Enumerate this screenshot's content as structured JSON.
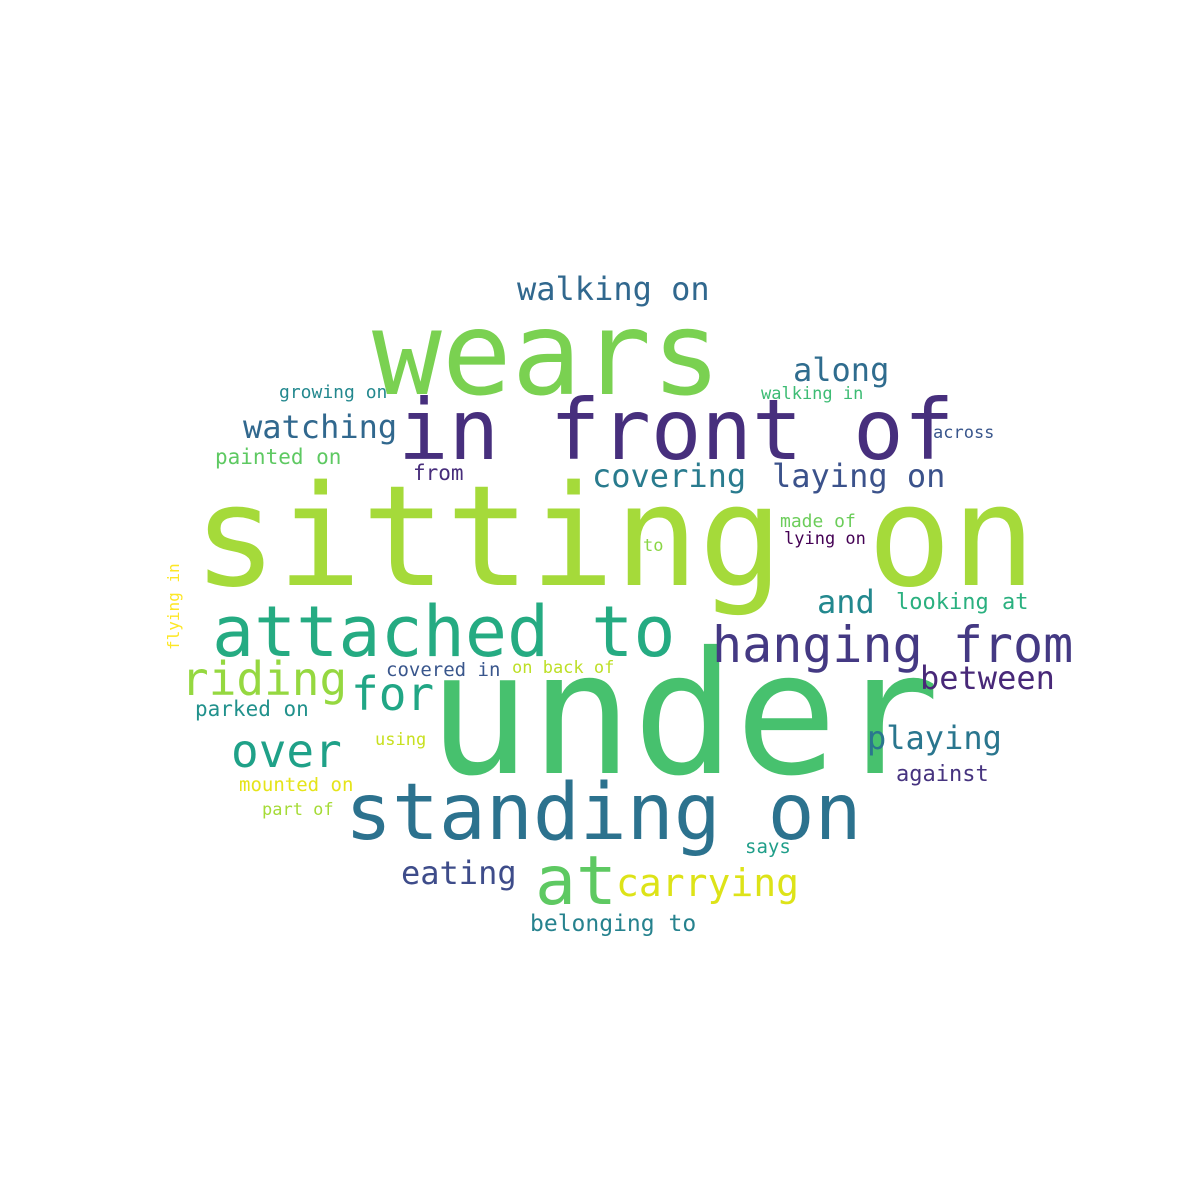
{
  "words": [
    {
      "text": "sitting on",
      "color": "#a5da3a"
    },
    {
      "text": "under",
      "color": "#47c16e"
    },
    {
      "text": "wears",
      "color": "#7ad151"
    },
    {
      "text": "in front of",
      "color": "#472f7d"
    },
    {
      "text": "attached to",
      "color": "#25ab82"
    },
    {
      "text": "standing on",
      "color": "#2c728e"
    },
    {
      "text": "hanging from",
      "color": "#443983"
    },
    {
      "text": "at",
      "color": "#5ec962"
    },
    {
      "text": "riding",
      "color": "#95d840"
    },
    {
      "text": "for",
      "color": "#21a685"
    },
    {
      "text": "over",
      "color": "#1fa188"
    },
    {
      "text": "carrying",
      "color": "#dde318"
    },
    {
      "text": "walking on",
      "color": "#31688e"
    },
    {
      "text": "along",
      "color": "#2f6c8e"
    },
    {
      "text": "watching",
      "color": "#31688e"
    },
    {
      "text": "covering",
      "color": "#297b8e"
    },
    {
      "text": "laying on",
      "color": "#3b528b"
    },
    {
      "text": "and",
      "color": "#23888e"
    },
    {
      "text": "between",
      "color": "#482878"
    },
    {
      "text": "playing",
      "color": "#2a768e"
    },
    {
      "text": "eating",
      "color": "#3e4c8a"
    },
    {
      "text": "growing on",
      "color": "#23888e"
    },
    {
      "text": "walking in",
      "color": "#3dbc74"
    },
    {
      "text": "across",
      "color": "#39568c"
    },
    {
      "text": "painted on",
      "color": "#5ec962"
    },
    {
      "text": "from",
      "color": "#472d7b"
    },
    {
      "text": "made of",
      "color": "#6ccd5a"
    },
    {
      "text": "to",
      "color": "#8bd646"
    },
    {
      "text": "lying on",
      "color": "#440154"
    },
    {
      "text": "looking at",
      "color": "#2ab07f"
    },
    {
      "text": "covered in",
      "color": "#39568c"
    },
    {
      "text": "on back of",
      "color": "#bddf26"
    },
    {
      "text": "parked on",
      "color": "#21918c"
    },
    {
      "text": "using",
      "color": "#c8e020"
    },
    {
      "text": "against",
      "color": "#46337f"
    },
    {
      "text": "mounted on",
      "color": "#e5e419"
    },
    {
      "text": "part of",
      "color": "#a5db36"
    },
    {
      "text": "says",
      "color": "#1f9e89"
    },
    {
      "text": "belonging to",
      "color": "#26828e"
    },
    {
      "text": "flying in",
      "color": "#fde725"
    }
  ]
}
